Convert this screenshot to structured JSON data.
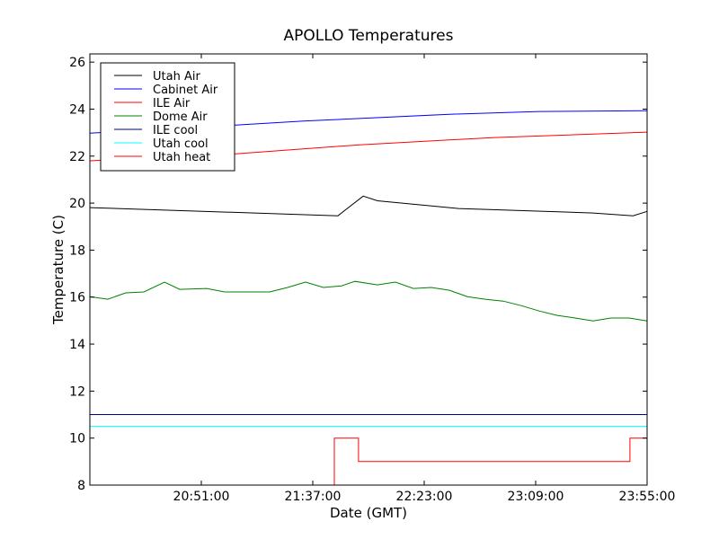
{
  "chart_data": {
    "type": "line",
    "title": "APOLLO Temperatures",
    "xlabel": "Date (GMT)",
    "ylabel": "Temperature (C)",
    "x_unit": "minutes after 20:00 GMT",
    "xlim": [
      5,
      235
    ],
    "ylim": [
      8,
      26.35
    ],
    "xticks": [
      {
        "value": 51,
        "label": "20:51:00"
      },
      {
        "value": 97,
        "label": "21:37:00"
      },
      {
        "value": 143,
        "label": "22:23:00"
      },
      {
        "value": 189,
        "label": "23:09:00"
      },
      {
        "value": 235,
        "label": "23:55:00"
      }
    ],
    "yticks": [
      {
        "value": 8,
        "label": "8"
      },
      {
        "value": 10,
        "label": "10"
      },
      {
        "value": 12,
        "label": "12"
      },
      {
        "value": 14,
        "label": "14"
      },
      {
        "value": 16,
        "label": "16"
      },
      {
        "value": 18,
        "label": "18"
      },
      {
        "value": 20,
        "label": "20"
      },
      {
        "value": 22,
        "label": "22"
      },
      {
        "value": 24,
        "label": "24"
      },
      {
        "value": 26,
        "label": "26"
      }
    ],
    "grid": false,
    "legend_position": "top-left",
    "series": [
      {
        "name": "Utah Air",
        "color": "#000000",
        "x": [
          5,
          107.4,
          117.8,
          123.7,
          157.1,
          212.7,
          229.2,
          235
        ],
        "y": [
          19.81,
          19.46,
          20.3,
          20.1,
          19.77,
          19.58,
          19.46,
          19.65
        ]
      },
      {
        "name": "Cabinet Air",
        "color": "#0000ff",
        "x": [
          5,
          65.1,
          94,
          116.3,
          153.4,
          190.5,
          235
        ],
        "y": [
          22.98,
          23.32,
          23.5,
          23.6,
          23.78,
          23.9,
          23.93
        ]
      },
      {
        "name": "ILE Air",
        "color": "#ff0000",
        "x": [
          5,
          65.1,
          116.3,
          171.9,
          235
        ],
        "y": [
          21.8,
          22.1,
          22.48,
          22.79,
          23.02
        ]
      },
      {
        "name": "Dome Air",
        "color": "#008000",
        "x": [
          5,
          12.4,
          19.8,
          27.3,
          35.8,
          42.1,
          53.2,
          60.6,
          68.1,
          79.2,
          86.6,
          94,
          101.4,
          108.9,
          114.4,
          123.7,
          131.1,
          138.5,
          145.9,
          153.4,
          160.8,
          168.2,
          175.6,
          183,
          190.5,
          197.9,
          205.3,
          212.7,
          220.1,
          227.5,
          235
        ],
        "y": [
          16.02,
          15.91,
          16.18,
          16.22,
          16.64,
          16.33,
          16.37,
          16.22,
          16.22,
          16.22,
          16.41,
          16.64,
          16.41,
          16.48,
          16.67,
          16.52,
          16.64,
          16.37,
          16.41,
          16.29,
          16.02,
          15.91,
          15.83,
          15.64,
          15.41,
          15.22,
          15.11,
          14.99,
          15.11,
          15.11,
          14.99
        ]
      },
      {
        "name": "ILE cool",
        "color": "#000080",
        "x": [
          5,
          235
        ],
        "y": [
          11.0,
          11.0
        ]
      },
      {
        "name": "Utah cool",
        "color": "#00ffff",
        "x": [
          5,
          235
        ],
        "y": [
          10.5,
          10.5
        ]
      },
      {
        "name": "Utah heat",
        "color": "#ff0000",
        "step": true,
        "x": [
          5,
          105.9,
          105.9,
          115.9,
          115.9,
          227.9,
          227.9,
          235
        ],
        "y": [
          8,
          8,
          10,
          10,
          9,
          9,
          10,
          10
        ]
      }
    ]
  }
}
